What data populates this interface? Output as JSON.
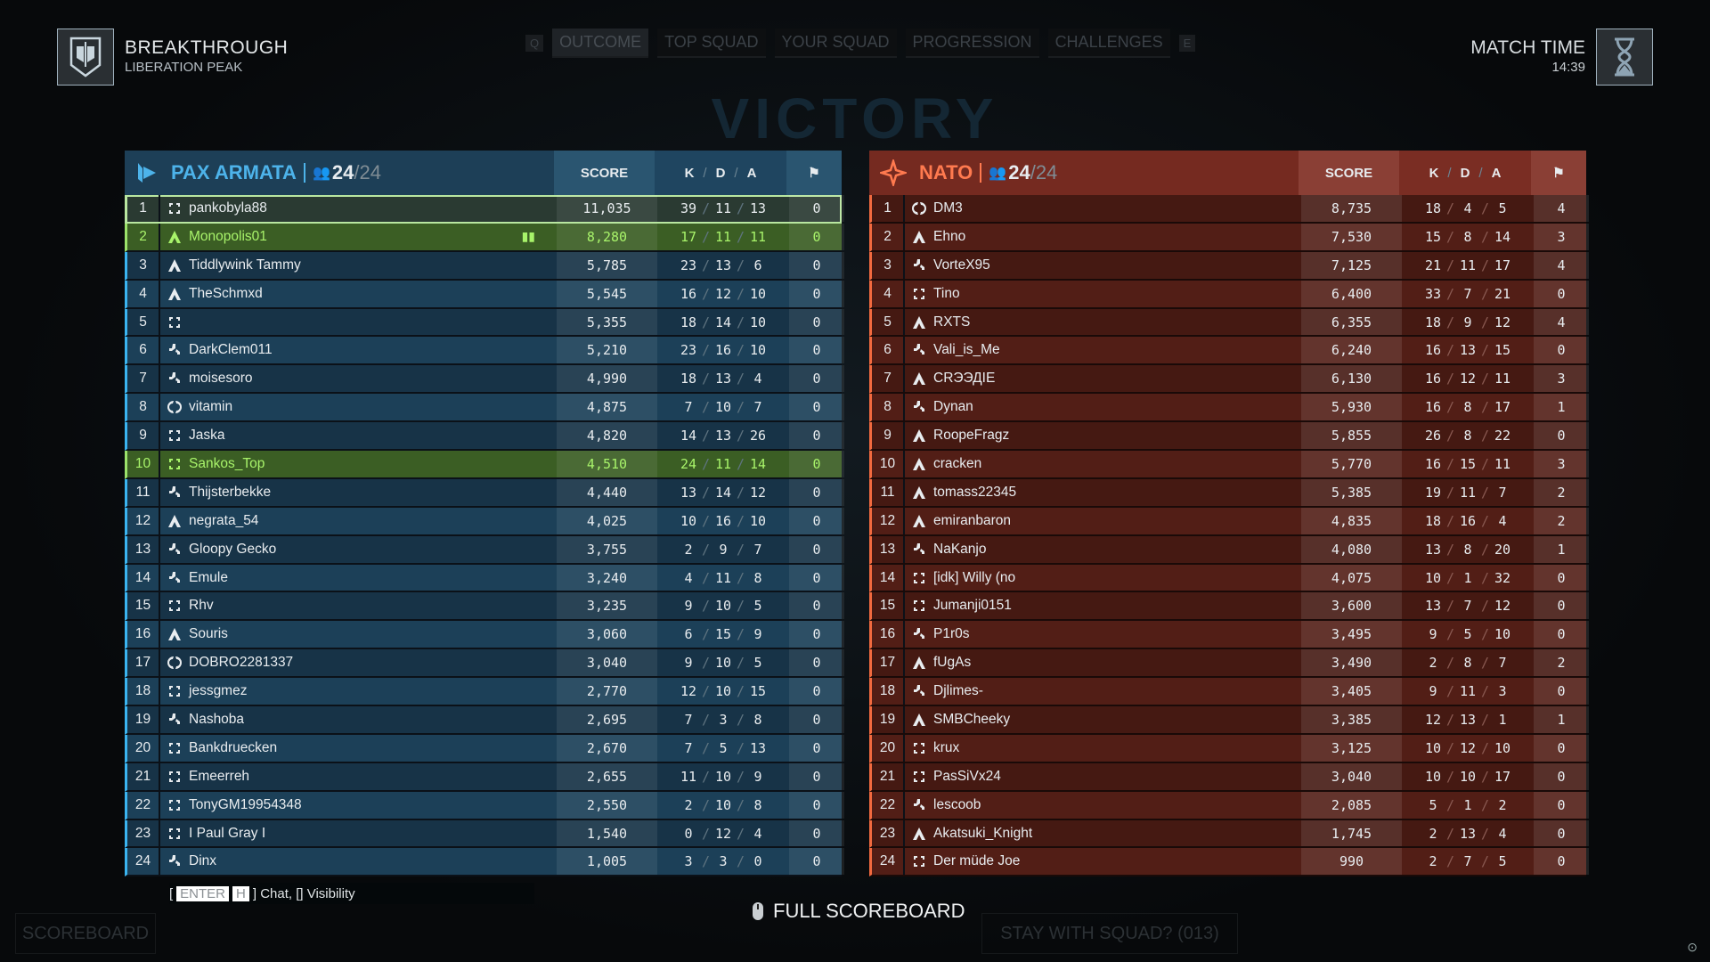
{
  "header": {
    "mode": "BREAKTHROUGH",
    "map": "LIBERATION PEAK",
    "match_time_label": "MATCH TIME",
    "match_time": "14:39",
    "tabs": [
      {
        "label": "OUTCOME",
        "selected": true
      },
      {
        "label": "TOP SQUAD"
      },
      {
        "label": "YOUR SQUAD"
      },
      {
        "label": "PROGRESSION"
      },
      {
        "label": "CHALLENGES"
      }
    ],
    "key_prev": "Q",
    "key_next": "E"
  },
  "background_text": "VICTORY",
  "columns": {
    "score": "SCORE",
    "k": "K",
    "d": "D",
    "a": "A",
    "flag_icon": "flag-icon"
  },
  "teams": [
    {
      "name": "PAX ARMATA",
      "count": "24",
      "max": "/24",
      "accent": "#4db3ea",
      "rows": [
        [
          "1",
          "support",
          "pankobyla88",
          "11,035",
          "39",
          "11",
          "13",
          "0",
          "self"
        ],
        [
          "2",
          "assault",
          "Monopolis01",
          "8,280",
          "17",
          "11",
          "11",
          "0",
          "squad"
        ],
        [
          "3",
          "assault",
          "Tiddlywink Tammy",
          "5,785",
          "23",
          "13",
          "6",
          "0",
          ""
        ],
        [
          "4",
          "assault",
          "TheSchmxd",
          "5,545",
          "16",
          "12",
          "10",
          "0",
          ""
        ],
        [
          "5",
          "support",
          "",
          "5,355",
          "18",
          "14",
          "10",
          "0",
          ""
        ],
        [
          "6",
          "engineer",
          "DarkClem011",
          "5,210",
          "23",
          "16",
          "10",
          "0",
          ""
        ],
        [
          "7",
          "engineer",
          "moisesoro",
          "4,990",
          "18",
          "13",
          "4",
          "0",
          ""
        ],
        [
          "8",
          "recon",
          "vitamin",
          "4,875",
          "7",
          "10",
          "7",
          "0",
          ""
        ],
        [
          "9",
          "support",
          "Jaska",
          "4,820",
          "14",
          "13",
          "26",
          "0",
          ""
        ],
        [
          "10",
          "support",
          "Sankos_Top",
          "4,510",
          "24",
          "11",
          "14",
          "0",
          "squad"
        ],
        [
          "11",
          "engineer",
          "Thijsterbekke",
          "4,440",
          "13",
          "14",
          "12",
          "0",
          ""
        ],
        [
          "12",
          "assault",
          "negrata_54",
          "4,025",
          "10",
          "16",
          "10",
          "0",
          ""
        ],
        [
          "13",
          "engineer",
          "Gloopy Gecko",
          "3,755",
          "2",
          "9",
          "7",
          "0",
          ""
        ],
        [
          "14",
          "engineer",
          "Emule",
          "3,240",
          "4",
          "11",
          "8",
          "0",
          ""
        ],
        [
          "15",
          "support",
          "Rhv",
          "3,235",
          "9",
          "10",
          "5",
          "0",
          ""
        ],
        [
          "16",
          "assault",
          "Souris",
          "3,060",
          "6",
          "15",
          "9",
          "0",
          ""
        ],
        [
          "17",
          "recon",
          "DOBRO2281337",
          "3,040",
          "9",
          "10",
          "5",
          "0",
          ""
        ],
        [
          "18",
          "support",
          "jessgmez",
          "2,770",
          "12",
          "10",
          "15",
          "0",
          ""
        ],
        [
          "19",
          "engineer",
          "Nashoba",
          "2,695",
          "7",
          "3",
          "8",
          "0",
          ""
        ],
        [
          "20",
          "support",
          "Bankdruecken",
          "2,670",
          "7",
          "5",
          "13",
          "0",
          ""
        ],
        [
          "21",
          "support",
          "Emeerreh",
          "2,655",
          "11",
          "10",
          "9",
          "0",
          ""
        ],
        [
          "22",
          "support",
          "TonyGM19954348",
          "2,550",
          "2",
          "10",
          "8",
          "0",
          ""
        ],
        [
          "23",
          "support",
          "I Paul Gray I",
          "1,540",
          "0",
          "12",
          "4",
          "0",
          ""
        ],
        [
          "24",
          "engineer",
          "Dinx",
          "1,005",
          "3",
          "3",
          "0",
          "0",
          ""
        ]
      ]
    },
    {
      "name": "NATO",
      "count": "24",
      "max": "/24",
      "accent": "#ff7a4f",
      "rows": [
        [
          "1",
          "recon",
          "DM3",
          "8,735",
          "18",
          "4",
          "5",
          "4",
          ""
        ],
        [
          "2",
          "assault",
          "Ehno",
          "7,530",
          "15",
          "8",
          "14",
          "3",
          ""
        ],
        [
          "3",
          "engineer",
          "VorteX95",
          "7,125",
          "21",
          "11",
          "17",
          "4",
          ""
        ],
        [
          "4",
          "support",
          "Tino",
          "6,400",
          "33",
          "7",
          "21",
          "0",
          ""
        ],
        [
          "5",
          "assault",
          "RXTS",
          "6,355",
          "18",
          "9",
          "12",
          "4",
          ""
        ],
        [
          "6",
          "engineer",
          "Vali_is_Me",
          "6,240",
          "16",
          "13",
          "15",
          "0",
          ""
        ],
        [
          "7",
          "assault",
          "CRЭЭДIE",
          "6,130",
          "16",
          "12",
          "11",
          "3",
          ""
        ],
        [
          "8",
          "engineer",
          "Dynan",
          "5,930",
          "16",
          "8",
          "17",
          "1",
          ""
        ],
        [
          "9",
          "assault",
          "RoopeFragz",
          "5,855",
          "26",
          "8",
          "22",
          "0",
          ""
        ],
        [
          "10",
          "assault",
          "cracken",
          "5,770",
          "16",
          "15",
          "11",
          "3",
          ""
        ],
        [
          "11",
          "assault",
          "tomass22345",
          "5,385",
          "19",
          "11",
          "7",
          "2",
          ""
        ],
        [
          "12",
          "assault",
          "emiranbaron",
          "4,835",
          "18",
          "16",
          "4",
          "2",
          ""
        ],
        [
          "13",
          "engineer",
          "NaKanjo",
          "4,080",
          "13",
          "8",
          "20",
          "1",
          ""
        ],
        [
          "14",
          "support",
          "[idk] Willy (no",
          "4,075",
          "10",
          "1",
          "32",
          "0",
          ""
        ],
        [
          "15",
          "support",
          "Jumanji0151",
          "3,600",
          "13",
          "7",
          "12",
          "0",
          ""
        ],
        [
          "16",
          "engineer",
          "P1r0s",
          "3,495",
          "9",
          "5",
          "10",
          "0",
          ""
        ],
        [
          "17",
          "assault",
          "fUgAs",
          "3,490",
          "2",
          "8",
          "7",
          "2",
          ""
        ],
        [
          "18",
          "engineer",
          "Djlimes-",
          "3,405",
          "9",
          "11",
          "3",
          "0",
          ""
        ],
        [
          "19",
          "assault",
          "SMBCheeky",
          "3,385",
          "12",
          "13",
          "1",
          "1",
          ""
        ],
        [
          "20",
          "support",
          "krux",
          "3,125",
          "10",
          "12",
          "10",
          "0",
          ""
        ],
        [
          "21",
          "support",
          "PasSiVx24",
          "3,040",
          "10",
          "10",
          "17",
          "0",
          ""
        ],
        [
          "22",
          "engineer",
          "lescoob",
          "2,085",
          "5",
          "1",
          "2",
          "0",
          ""
        ],
        [
          "23",
          "assault",
          "Akatsuki_Knight",
          "1,745",
          "2",
          "13",
          "4",
          "0",
          ""
        ],
        [
          "24",
          "support",
          "Der müde Joe",
          "990",
          "2",
          "7",
          "5",
          "0",
          ""
        ]
      ]
    }
  ],
  "chat_overlay": {
    "open": "[",
    "key1": "ENTER",
    "key2": "H",
    "text": "] Chat, [] Visibility"
  },
  "footer": {
    "scoreboard": "SCOREBOARD",
    "full_scoreboard": "FULL SCOREBOARD",
    "stay": "STAY WITH SQUAD? (013)"
  }
}
